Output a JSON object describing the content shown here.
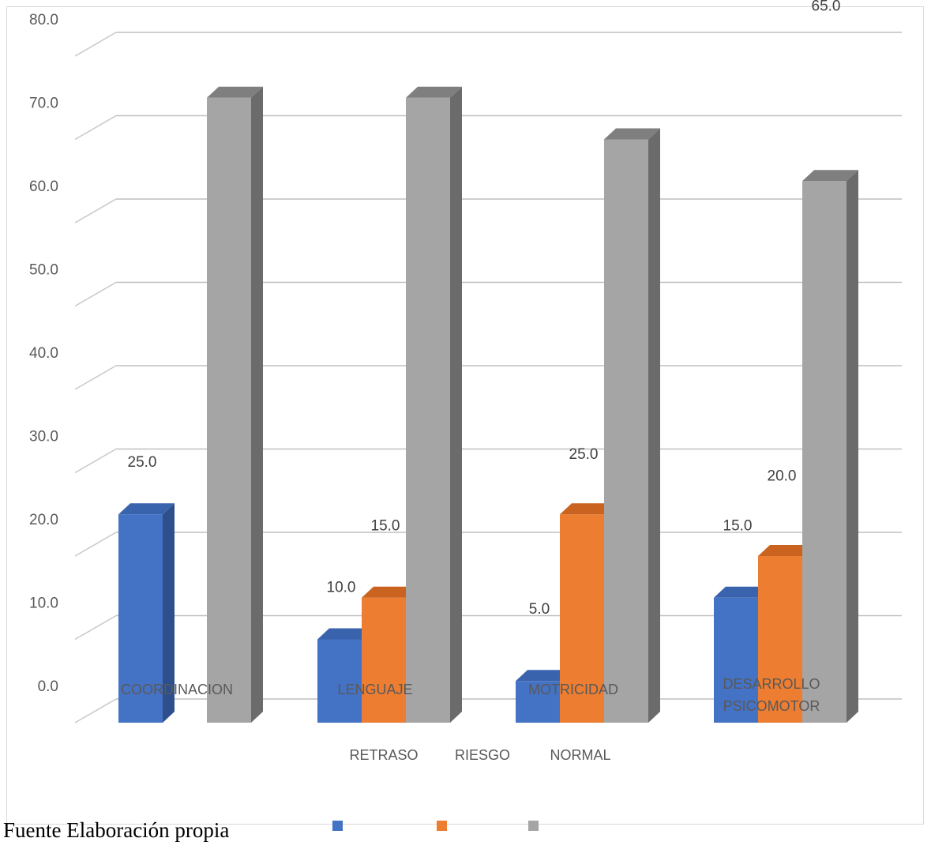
{
  "chart_data": {
    "type": "bar",
    "title": "",
    "xlabel": "",
    "ylabel": "",
    "ylim": [
      0,
      80
    ],
    "yticks": [
      "0.0",
      "10.0",
      "20.0",
      "30.0",
      "40.0",
      "50.0",
      "60.0",
      "70.0",
      "80.0"
    ],
    "categories": [
      "COORDINACION",
      "LENGUAJE",
      "MOTRICIDAD",
      "DESARROLLO PSICOMOTOR"
    ],
    "series": [
      {
        "name": "RETRASO",
        "values": [
          25.0,
          10.0,
          5.0,
          15.0
        ],
        "color": "#4472c4",
        "side": "#2e4f8c",
        "top": "#3a63ad"
      },
      {
        "name": "RIESGO",
        "values": [
          null,
          15.0,
          25.0,
          20.0
        ],
        "color": "#ed7d31",
        "side": "#b55a1c",
        "top": "#c9631f"
      },
      {
        "name": "NORMAL",
        "values": [
          75.0,
          75.0,
          70.0,
          65.0
        ],
        "color": "#a5a5a5",
        "side": "#6b6b6b",
        "top": "#7f7f7f"
      }
    ],
    "data_labels": [
      [
        "25.0",
        "",
        "75.0"
      ],
      [
        "10.0",
        "15.0",
        "75.0"
      ],
      [
        "5.0",
        "25.0",
        "70.0"
      ],
      [
        "15.0",
        "20.0",
        "65.0"
      ]
    ],
    "grid": true,
    "legend_position": "bottom",
    "legend": [
      "RETRASO",
      "RIESGO",
      "NORMAL"
    ]
  },
  "source_note": "Fuente Elaboración propia"
}
